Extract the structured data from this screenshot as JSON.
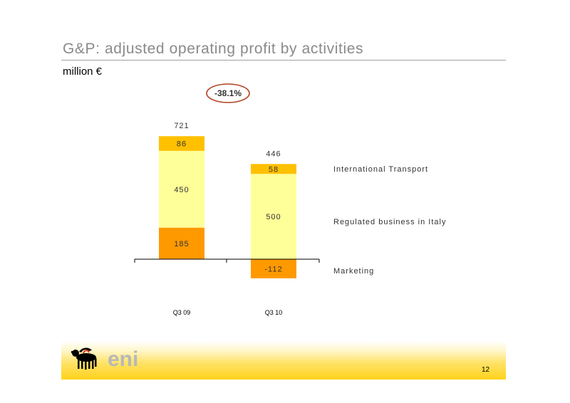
{
  "slide": {
    "title": "G&P: adjusted operating profit by activities",
    "subtitle": "million €",
    "page_number": "12",
    "logo_text": "eni"
  },
  "colors": {
    "international_transport": "#ffc000",
    "regulated_business": "#ffff99",
    "marketing": "#ff9900",
    "change_ring": "#b04020",
    "footer": "#ffd21a"
  },
  "chart_data": {
    "type": "bar",
    "stacked": true,
    "categories": [
      "Q3 09",
      "Q3 10"
    ],
    "series": [
      {
        "name": "Marketing",
        "values": [
          185,
          -112
        ],
        "labels": [
          "185",
          "-112"
        ]
      },
      {
        "name": "Regulated business in Italy",
        "values": [
          450,
          500
        ],
        "labels": [
          "450",
          "500"
        ]
      },
      {
        "name": "International Transport",
        "values": [
          86,
          58
        ],
        "labels": [
          "86",
          "58"
        ]
      }
    ],
    "totals": [
      721,
      446
    ],
    "total_labels": [
      "721",
      "446"
    ],
    "change_label": "-38.1%",
    "ylim": [
      -112,
      721
    ],
    "legend_position": "right",
    "grid": false
  }
}
